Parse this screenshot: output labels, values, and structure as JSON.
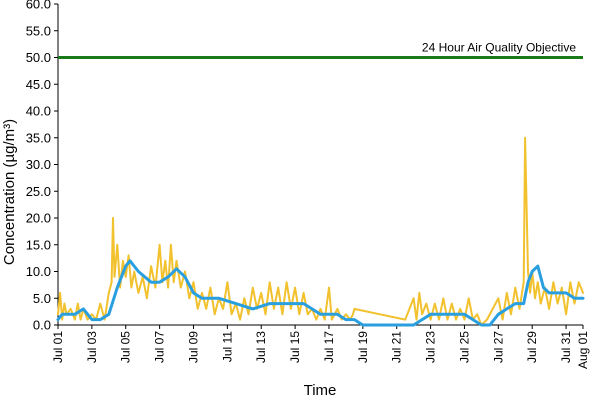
{
  "chart_data": {
    "type": "line",
    "xlabel": "Time",
    "ylabel": "Concentration (µg/m³)",
    "ylim": [
      0,
      60
    ],
    "y_ticks": [
      "0.0",
      "5.0",
      "10.0",
      "15.0",
      "20.0",
      "25.0",
      "30.0",
      "35.0",
      "40.0",
      "45.0",
      "50.0",
      "55.0",
      "60.0"
    ],
    "x_start": "2022-07-01",
    "x_end": "2022-08-01",
    "x_ticks": [
      {
        "date": "2022-07-01",
        "label": "Jul 01"
      },
      {
        "date": "2022-07-03",
        "label": "Jul 03"
      },
      {
        "date": "2022-07-05",
        "label": "Jul 05"
      },
      {
        "date": "2022-07-07",
        "label": "Jul 07"
      },
      {
        "date": "2022-07-09",
        "label": "Jul 09"
      },
      {
        "date": "2022-07-11",
        "label": "Jul 11"
      },
      {
        "date": "2022-07-13",
        "label": "Jul 13"
      },
      {
        "date": "2022-07-15",
        "label": "Jul 15"
      },
      {
        "date": "2022-07-17",
        "label": "Jul 17"
      },
      {
        "date": "2022-07-19",
        "label": "Jul 19"
      },
      {
        "date": "2022-07-21",
        "label": "Jul 21"
      },
      {
        "date": "2022-07-23",
        "label": "Jul 23"
      },
      {
        "date": "2022-07-25",
        "label": "Jul 25"
      },
      {
        "date": "2022-07-27",
        "label": "Jul 27"
      },
      {
        "date": "2022-07-29",
        "label": "Jul 29"
      },
      {
        "date": "2022-07-31",
        "label": "Jul 31"
      },
      {
        "date": "2022-08-01",
        "label": "Aug 01"
      }
    ],
    "grid": false,
    "reference_line": {
      "y": 50,
      "label": "24 Hour Air Quality Objective",
      "color": "#1a7a1a"
    },
    "series": [
      {
        "color": "#f2c12e",
        "points": [
          [
            "2022-07-01 00:00",
            2
          ],
          [
            "2022-07-01 03:00",
            6
          ],
          [
            "2022-07-01 06:00",
            1
          ],
          [
            "2022-07-01 09:00",
            4
          ],
          [
            "2022-07-01 12:00",
            2
          ],
          [
            "2022-07-01 18:00",
            3
          ],
          [
            "2022-07-02 00:00",
            1
          ],
          [
            "2022-07-02 04:00",
            4
          ],
          [
            "2022-07-02 08:00",
            1
          ],
          [
            "2022-07-02 12:00",
            3
          ],
          [
            "2022-07-02 18:00",
            1
          ],
          [
            "2022-07-03 00:00",
            2
          ],
          [
            "2022-07-03 06:00",
            1
          ],
          [
            "2022-07-03 12:00",
            4
          ],
          [
            "2022-07-03 18:00",
            1
          ],
          [
            "2022-07-04 00:00",
            6
          ],
          [
            "2022-07-04 04:00",
            8
          ],
          [
            "2022-07-04 06:00",
            20
          ],
          [
            "2022-07-04 08:00",
            9
          ],
          [
            "2022-07-04 12:00",
            15
          ],
          [
            "2022-07-04 16:00",
            7
          ],
          [
            "2022-07-04 20:00",
            12
          ],
          [
            "2022-07-05 00:00",
            9
          ],
          [
            "2022-07-05 04:00",
            13
          ],
          [
            "2022-07-05 08:00",
            7
          ],
          [
            "2022-07-05 12:00",
            10
          ],
          [
            "2022-07-05 18:00",
            6
          ],
          [
            "2022-07-06 00:00",
            9
          ],
          [
            "2022-07-06 06:00",
            5
          ],
          [
            "2022-07-06 12:00",
            11
          ],
          [
            "2022-07-06 18:00",
            7
          ],
          [
            "2022-07-07 00:00",
            15
          ],
          [
            "2022-07-07 04:00",
            8
          ],
          [
            "2022-07-07 08:00",
            12
          ],
          [
            "2022-07-07 12:00",
            7
          ],
          [
            "2022-07-07 16:00",
            15
          ],
          [
            "2022-07-07 20:00",
            8
          ],
          [
            "2022-07-08 00:00",
            12
          ],
          [
            "2022-07-08 06:00",
            7
          ],
          [
            "2022-07-08 12:00",
            10
          ],
          [
            "2022-07-08 18:00",
            5
          ],
          [
            "2022-07-09 00:00",
            8
          ],
          [
            "2022-07-09 06:00",
            3
          ],
          [
            "2022-07-09 12:00",
            6
          ],
          [
            "2022-07-09 18:00",
            3
          ],
          [
            "2022-07-10 00:00",
            7
          ],
          [
            "2022-07-10 06:00",
            2
          ],
          [
            "2022-07-10 12:00",
            5
          ],
          [
            "2022-07-10 18:00",
            3
          ],
          [
            "2022-07-11 00:00",
            8
          ],
          [
            "2022-07-11 06:00",
            2
          ],
          [
            "2022-07-11 12:00",
            4
          ],
          [
            "2022-07-11 18:00",
            1
          ],
          [
            "2022-07-12 00:00",
            5
          ],
          [
            "2022-07-12 06:00",
            2
          ],
          [
            "2022-07-12 12:00",
            7
          ],
          [
            "2022-07-12 18:00",
            3
          ],
          [
            "2022-07-13 00:00",
            6
          ],
          [
            "2022-07-13 06:00",
            2
          ],
          [
            "2022-07-13 12:00",
            8
          ],
          [
            "2022-07-13 18:00",
            3
          ],
          [
            "2022-07-14 00:00",
            7
          ],
          [
            "2022-07-14 06:00",
            2
          ],
          [
            "2022-07-14 12:00",
            8
          ],
          [
            "2022-07-14 18:00",
            3
          ],
          [
            "2022-07-15 00:00",
            7
          ],
          [
            "2022-07-15 06:00",
            2
          ],
          [
            "2022-07-15 12:00",
            6
          ],
          [
            "2022-07-15 18:00",
            2
          ],
          [
            "2022-07-16 00:00",
            3
          ],
          [
            "2022-07-16 06:00",
            1
          ],
          [
            "2022-07-16 12:00",
            3
          ],
          [
            "2022-07-16 18:00",
            1
          ],
          [
            "2022-07-17 00:00",
            7
          ],
          [
            "2022-07-17 04:00",
            1
          ],
          [
            "2022-07-17 12:00",
            3
          ],
          [
            "2022-07-17 18:00",
            1
          ],
          [
            "2022-07-18 00:00",
            2
          ],
          [
            "2022-07-18 06:00",
            1
          ],
          [
            "2022-07-18 10:00",
            2
          ],
          [
            "2022-07-18 12:00",
            3
          ],
          [
            "2022-07-21 12:00",
            1
          ],
          [
            "2022-07-22 00:00",
            5
          ],
          [
            "2022-07-22 04:00",
            1
          ],
          [
            "2022-07-22 08:00",
            6
          ],
          [
            "2022-07-22 12:00",
            2
          ],
          [
            "2022-07-22 18:00",
            4
          ],
          [
            "2022-07-23 00:00",
            1
          ],
          [
            "2022-07-23 06:00",
            4
          ],
          [
            "2022-07-23 12:00",
            1
          ],
          [
            "2022-07-23 18:00",
            5
          ],
          [
            "2022-07-24 00:00",
            1
          ],
          [
            "2022-07-24 06:00",
            4
          ],
          [
            "2022-07-24 12:00",
            1
          ],
          [
            "2022-07-24 18:00",
            3
          ],
          [
            "2022-07-25 00:00",
            1
          ],
          [
            "2022-07-25 06:00",
            5
          ],
          [
            "2022-07-25 12:00",
            1
          ],
          [
            "2022-07-25 18:00",
            2
          ],
          [
            "2022-07-26 00:00",
            0
          ],
          [
            "2022-07-26 08:00",
            1
          ],
          [
            "2022-07-26 16:00",
            3
          ],
          [
            "2022-07-27 00:00",
            5
          ],
          [
            "2022-07-27 06:00",
            1
          ],
          [
            "2022-07-27 12:00",
            6
          ],
          [
            "2022-07-27 18:00",
            2
          ],
          [
            "2022-07-28 00:00",
            7
          ],
          [
            "2022-07-28 06:00",
            3
          ],
          [
            "2022-07-28 12:00",
            8
          ],
          [
            "2022-07-28 14:00",
            35
          ],
          [
            "2022-07-28 18:00",
            10
          ],
          [
            "2022-07-28 21:00",
            6
          ],
          [
            "2022-07-29 00:00",
            10
          ],
          [
            "2022-07-29 04:00",
            5
          ],
          [
            "2022-07-29 08:00",
            8
          ],
          [
            "2022-07-29 12:00",
            4
          ],
          [
            "2022-07-29 18:00",
            7
          ],
          [
            "2022-07-30 00:00",
            3
          ],
          [
            "2022-07-30 06:00",
            8
          ],
          [
            "2022-07-30 12:00",
            4
          ],
          [
            "2022-07-30 18:00",
            7
          ],
          [
            "2022-07-31 00:00",
            2
          ],
          [
            "2022-07-31 06:00",
            8
          ],
          [
            "2022-07-31 12:00",
            4
          ],
          [
            "2022-07-31 18:00",
            8
          ],
          [
            "2022-08-01 00:00",
            6
          ]
        ]
      },
      {
        "color": "#2a9fe0",
        "points": [
          [
            "2022-07-01 00:00",
            1
          ],
          [
            "2022-07-01 06:00",
            2
          ],
          [
            "2022-07-02 00:00",
            2
          ],
          [
            "2022-07-02 12:00",
            3
          ],
          [
            "2022-07-03 00:00",
            1
          ],
          [
            "2022-07-03 12:00",
            1
          ],
          [
            "2022-07-04 00:00",
            2
          ],
          [
            "2022-07-04 12:00",
            7
          ],
          [
            "2022-07-05 00:00",
            11
          ],
          [
            "2022-07-05 06:00",
            12
          ],
          [
            "2022-07-05 18:00",
            10
          ],
          [
            "2022-07-06 12:00",
            8
          ],
          [
            "2022-07-07 00:00",
            8
          ],
          [
            "2022-07-07 12:00",
            9
          ],
          [
            "2022-07-08 00:00",
            10.5
          ],
          [
            "2022-07-08 12:00",
            9
          ],
          [
            "2022-07-09 00:00",
            6
          ],
          [
            "2022-07-09 12:00",
            5
          ],
          [
            "2022-07-10 12:00",
            5
          ],
          [
            "2022-07-11 12:00",
            4
          ],
          [
            "2022-07-12 12:00",
            3
          ],
          [
            "2022-07-13 12:00",
            4
          ],
          [
            "2022-07-14 12:00",
            4
          ],
          [
            "2022-07-15 12:00",
            4
          ],
          [
            "2022-07-16 00:00",
            3
          ],
          [
            "2022-07-16 12:00",
            2
          ],
          [
            "2022-07-17 12:00",
            2
          ],
          [
            "2022-07-18 00:00",
            1
          ],
          [
            "2022-07-18 12:00",
            1
          ],
          [
            "2022-07-19 00:00",
            0
          ],
          [
            "2022-07-22 00:00",
            0
          ],
          [
            "2022-07-22 12:00",
            1
          ],
          [
            "2022-07-23 00:00",
            2
          ],
          [
            "2022-07-24 00:00",
            2
          ],
          [
            "2022-07-25 00:00",
            2
          ],
          [
            "2022-07-25 12:00",
            1
          ],
          [
            "2022-07-26 00:00",
            0
          ],
          [
            "2022-07-26 12:00",
            0
          ],
          [
            "2022-07-27 00:00",
            2
          ],
          [
            "2022-07-27 12:00",
            3
          ],
          [
            "2022-07-28 00:00",
            4
          ],
          [
            "2022-07-28 12:00",
            4
          ],
          [
            "2022-07-28 18:00",
            8
          ],
          [
            "2022-07-29 00:00",
            10
          ],
          [
            "2022-07-29 08:00",
            11
          ],
          [
            "2022-07-29 16:00",
            7
          ],
          [
            "2022-07-30 00:00",
            6
          ],
          [
            "2022-07-31 00:00",
            6
          ],
          [
            "2022-07-31 12:00",
            5
          ],
          [
            "2022-08-01 00:00",
            5
          ]
        ]
      }
    ]
  }
}
